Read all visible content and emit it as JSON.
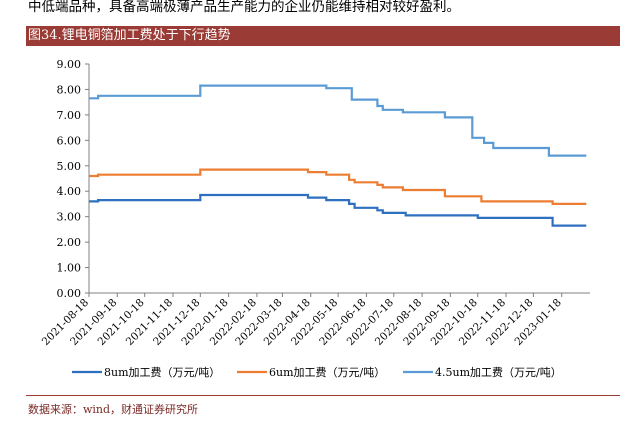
{
  "top_text": "中低端品种，具备高端极薄产品生产能力的企业仍能维持相对较好盈利。",
  "figure_title": "图34.锂电铜箔加工费处于下行趋势",
  "source": "数据来源：wind，财通证券研究所",
  "colors": {
    "banner": "#9b3b35",
    "series_8um": "#2e6fbf",
    "series_6um": "#ed7d31",
    "series_45um": "#5b9bd5",
    "axis": "#808080"
  },
  "chart_data": {
    "type": "line",
    "title": "",
    "xlabel": "",
    "ylabel": "",
    "ylim": [
      0,
      9
    ],
    "yticks": [
      "0.00",
      "1.00",
      "2.00",
      "3.00",
      "4.00",
      "5.00",
      "6.00",
      "7.00",
      "8.00",
      "9.00"
    ],
    "xticks": [
      "2021-08-18",
      "2021-09-18",
      "2021-10-18",
      "2021-11-18",
      "2021-12-18",
      "2022-01-18",
      "2022-02-18",
      "2022-03-18",
      "2022-04-18",
      "2022-05-18",
      "2022-06-18",
      "2022-07-18",
      "2022-08-18",
      "2022-09-18",
      "2022-10-18",
      "2022-11-18",
      "2022-12-18",
      "2023-01-18"
    ],
    "x_range": [
      "2021-08-18",
      "2023-02-18"
    ],
    "grid": false,
    "legend_position": "bottom",
    "series": [
      {
        "name": "8um加工费（万元/吨）",
        "points": [
          [
            "2021-08-18",
            3.6
          ],
          [
            "2021-08-28",
            3.6
          ],
          [
            "2021-08-28",
            3.65
          ],
          [
            "2021-12-18",
            3.65
          ],
          [
            "2021-12-18",
            3.85
          ],
          [
            "2022-04-15",
            3.85
          ],
          [
            "2022-04-15",
            3.75
          ],
          [
            "2022-05-05",
            3.75
          ],
          [
            "2022-05-05",
            3.65
          ],
          [
            "2022-05-30",
            3.65
          ],
          [
            "2022-05-30",
            3.5
          ],
          [
            "2022-06-05",
            3.5
          ],
          [
            "2022-06-05",
            3.35
          ],
          [
            "2022-06-30",
            3.35
          ],
          [
            "2022-06-30",
            3.25
          ],
          [
            "2022-07-06",
            3.25
          ],
          [
            "2022-07-06",
            3.15
          ],
          [
            "2022-07-31",
            3.15
          ],
          [
            "2022-07-31",
            3.05
          ],
          [
            "2022-10-18",
            3.05
          ],
          [
            "2022-10-18",
            2.95
          ],
          [
            "2023-01-08",
            2.95
          ],
          [
            "2023-01-08",
            2.65
          ],
          [
            "2023-02-14",
            2.65
          ]
        ]
      },
      {
        "name": "6um加工费（万元/吨）",
        "points": [
          [
            "2021-08-18",
            4.6
          ],
          [
            "2021-08-28",
            4.6
          ],
          [
            "2021-08-28",
            4.65
          ],
          [
            "2021-12-18",
            4.65
          ],
          [
            "2021-12-18",
            4.85
          ],
          [
            "2022-04-15",
            4.85
          ],
          [
            "2022-04-15",
            4.75
          ],
          [
            "2022-05-05",
            4.75
          ],
          [
            "2022-05-05",
            4.65
          ],
          [
            "2022-05-30",
            4.65
          ],
          [
            "2022-05-30",
            4.45
          ],
          [
            "2022-06-05",
            4.45
          ],
          [
            "2022-06-05",
            4.35
          ],
          [
            "2022-06-30",
            4.35
          ],
          [
            "2022-06-30",
            4.25
          ],
          [
            "2022-07-06",
            4.25
          ],
          [
            "2022-07-06",
            4.15
          ],
          [
            "2022-07-28",
            4.15
          ],
          [
            "2022-07-28",
            4.05
          ],
          [
            "2022-09-12",
            4.05
          ],
          [
            "2022-09-12",
            3.8
          ],
          [
            "2022-10-22",
            3.8
          ],
          [
            "2022-10-22",
            3.6
          ],
          [
            "2023-01-08",
            3.6
          ],
          [
            "2023-01-08",
            3.5
          ],
          [
            "2023-02-14",
            3.5
          ]
        ]
      },
      {
        "name": "4.5um加工费（万元/吨）",
        "points": [
          [
            "2021-08-18",
            7.65
          ],
          [
            "2021-08-28",
            7.65
          ],
          [
            "2021-08-28",
            7.75
          ],
          [
            "2021-12-18",
            7.75
          ],
          [
            "2021-12-18",
            8.15
          ],
          [
            "2022-05-05",
            8.15
          ],
          [
            "2022-05-05",
            8.05
          ],
          [
            "2022-06-02",
            8.05
          ],
          [
            "2022-06-02",
            7.6
          ],
          [
            "2022-06-30",
            7.6
          ],
          [
            "2022-06-30",
            7.35
          ],
          [
            "2022-07-06",
            7.35
          ],
          [
            "2022-07-06",
            7.2
          ],
          [
            "2022-07-28",
            7.2
          ],
          [
            "2022-07-28",
            7.1
          ],
          [
            "2022-09-12",
            7.1
          ],
          [
            "2022-09-12",
            6.9
          ],
          [
            "2022-10-12",
            6.9
          ],
          [
            "2022-10-12",
            6.1
          ],
          [
            "2022-10-25",
            6.1
          ],
          [
            "2022-10-25",
            5.9
          ],
          [
            "2022-11-04",
            5.9
          ],
          [
            "2022-11-04",
            5.7
          ],
          [
            "2023-01-04",
            5.7
          ],
          [
            "2023-01-04",
            5.4
          ],
          [
            "2023-02-14",
            5.4
          ]
        ]
      }
    ]
  }
}
